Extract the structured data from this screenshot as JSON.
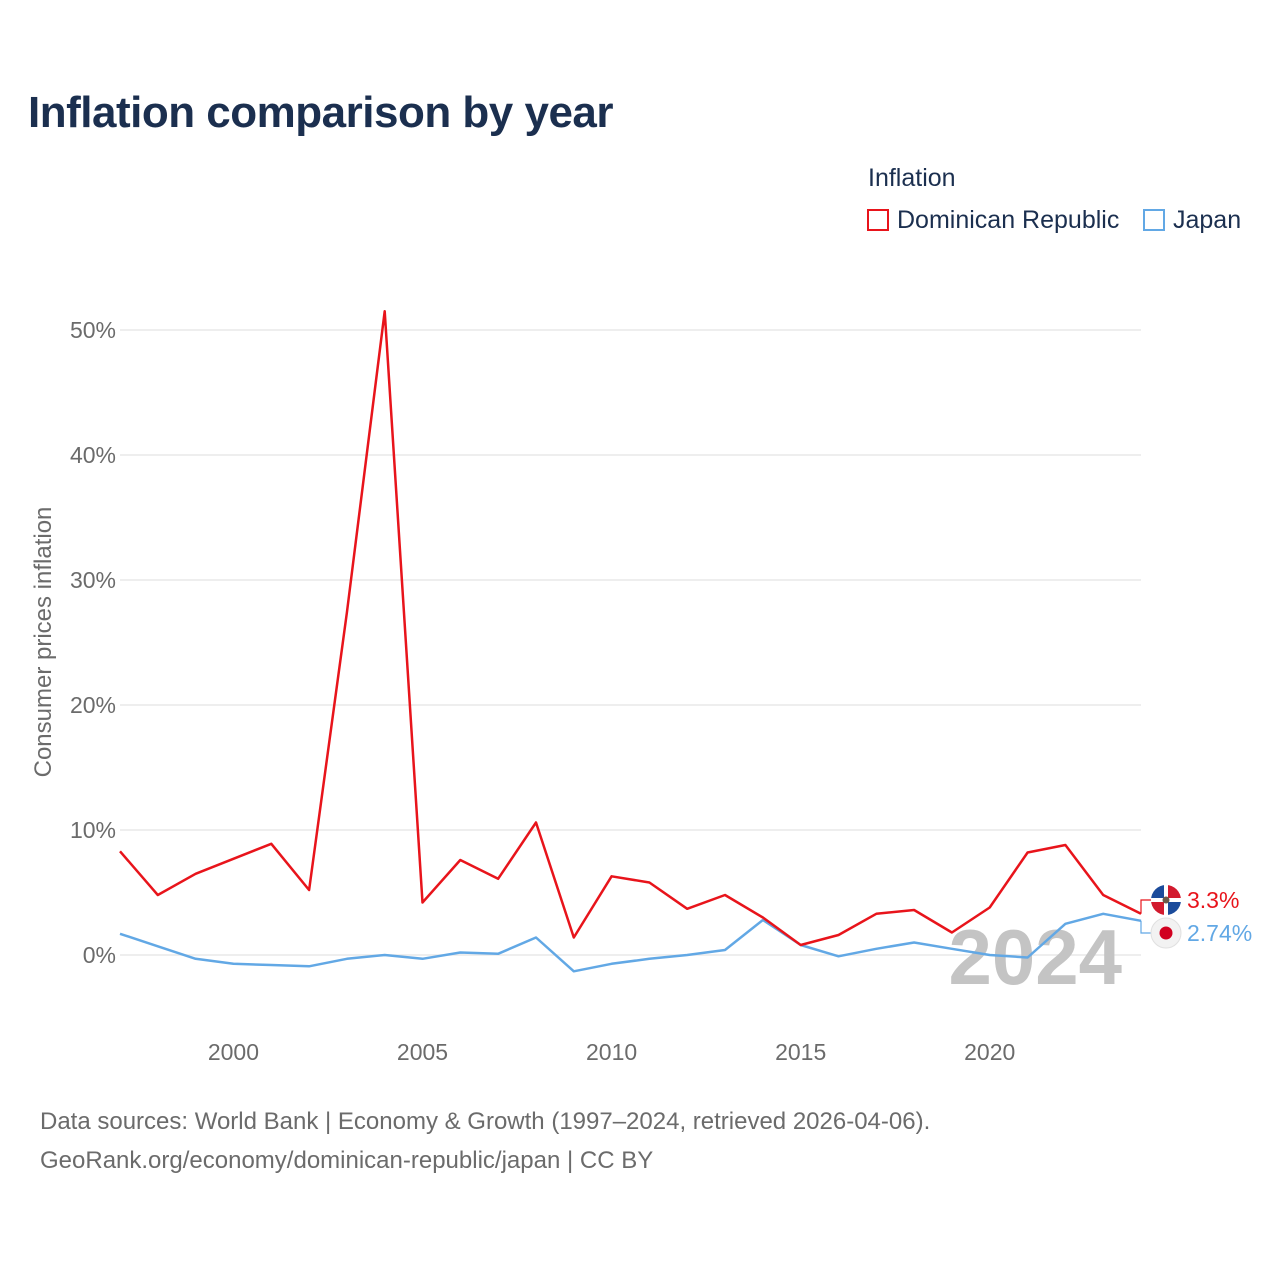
{
  "chart_data": {
    "type": "line",
    "title": "Inflation comparison by year",
    "legend_title": "Inflation",
    "legend_position": "top-right",
    "ylabel": "Consumer prices inflation",
    "xlabel": "",
    "x": [
      1997,
      1998,
      1999,
      2000,
      2001,
      2002,
      2003,
      2004,
      2005,
      2006,
      2007,
      2008,
      2009,
      2010,
      2011,
      2012,
      2013,
      2014,
      2015,
      2016,
      2017,
      2018,
      2019,
      2020,
      2021,
      2022,
      2023,
      2024
    ],
    "xlim": [
      1997,
      2024
    ],
    "ylim": [
      -5,
      55
    ],
    "x_ticks": [
      2000,
      2005,
      2010,
      2015,
      2020
    ],
    "x_tick_labels": [
      "2000",
      "2005",
      "2010",
      "2015",
      "2020"
    ],
    "y_ticks": [
      0,
      10,
      20,
      30,
      40,
      50
    ],
    "y_tick_labels": [
      "0%",
      "10%",
      "20%",
      "30%",
      "40%",
      "50%"
    ],
    "grid": true,
    "watermark_year": "2024",
    "series": [
      {
        "name": "Dominican Republic",
        "color": "#e8141b",
        "icon": "dominican-republic-flag-icon",
        "values": [
          8.3,
          4.8,
          6.5,
          7.7,
          8.9,
          5.2,
          27.4,
          51.5,
          4.2,
          7.6,
          6.1,
          10.6,
          1.4,
          6.3,
          5.8,
          3.7,
          4.8,
          3.0,
          0.8,
          1.6,
          3.3,
          3.6,
          1.8,
          3.8,
          8.2,
          8.8,
          4.8,
          3.3
        ],
        "end_label": "3.3%"
      },
      {
        "name": "Japan",
        "color": "#62a8e5",
        "icon": "japan-flag-icon",
        "values": [
          1.7,
          0.7,
          -0.3,
          -0.7,
          -0.8,
          -0.9,
          -0.3,
          0.0,
          -0.3,
          0.2,
          0.1,
          1.4,
          -1.3,
          -0.7,
          -0.3,
          0.0,
          0.4,
          2.8,
          0.8,
          -0.1,
          0.5,
          1.0,
          0.5,
          0.0,
          -0.2,
          2.5,
          3.3,
          2.74
        ],
        "end_label": "2.74%"
      }
    ]
  },
  "footer": {
    "source": "Data sources: World Bank | Economy & Growth (1997–2024, retrieved 2026-04-06).",
    "credit": "GeoRank.org/economy/dominican-republic/japan | CC BY"
  }
}
